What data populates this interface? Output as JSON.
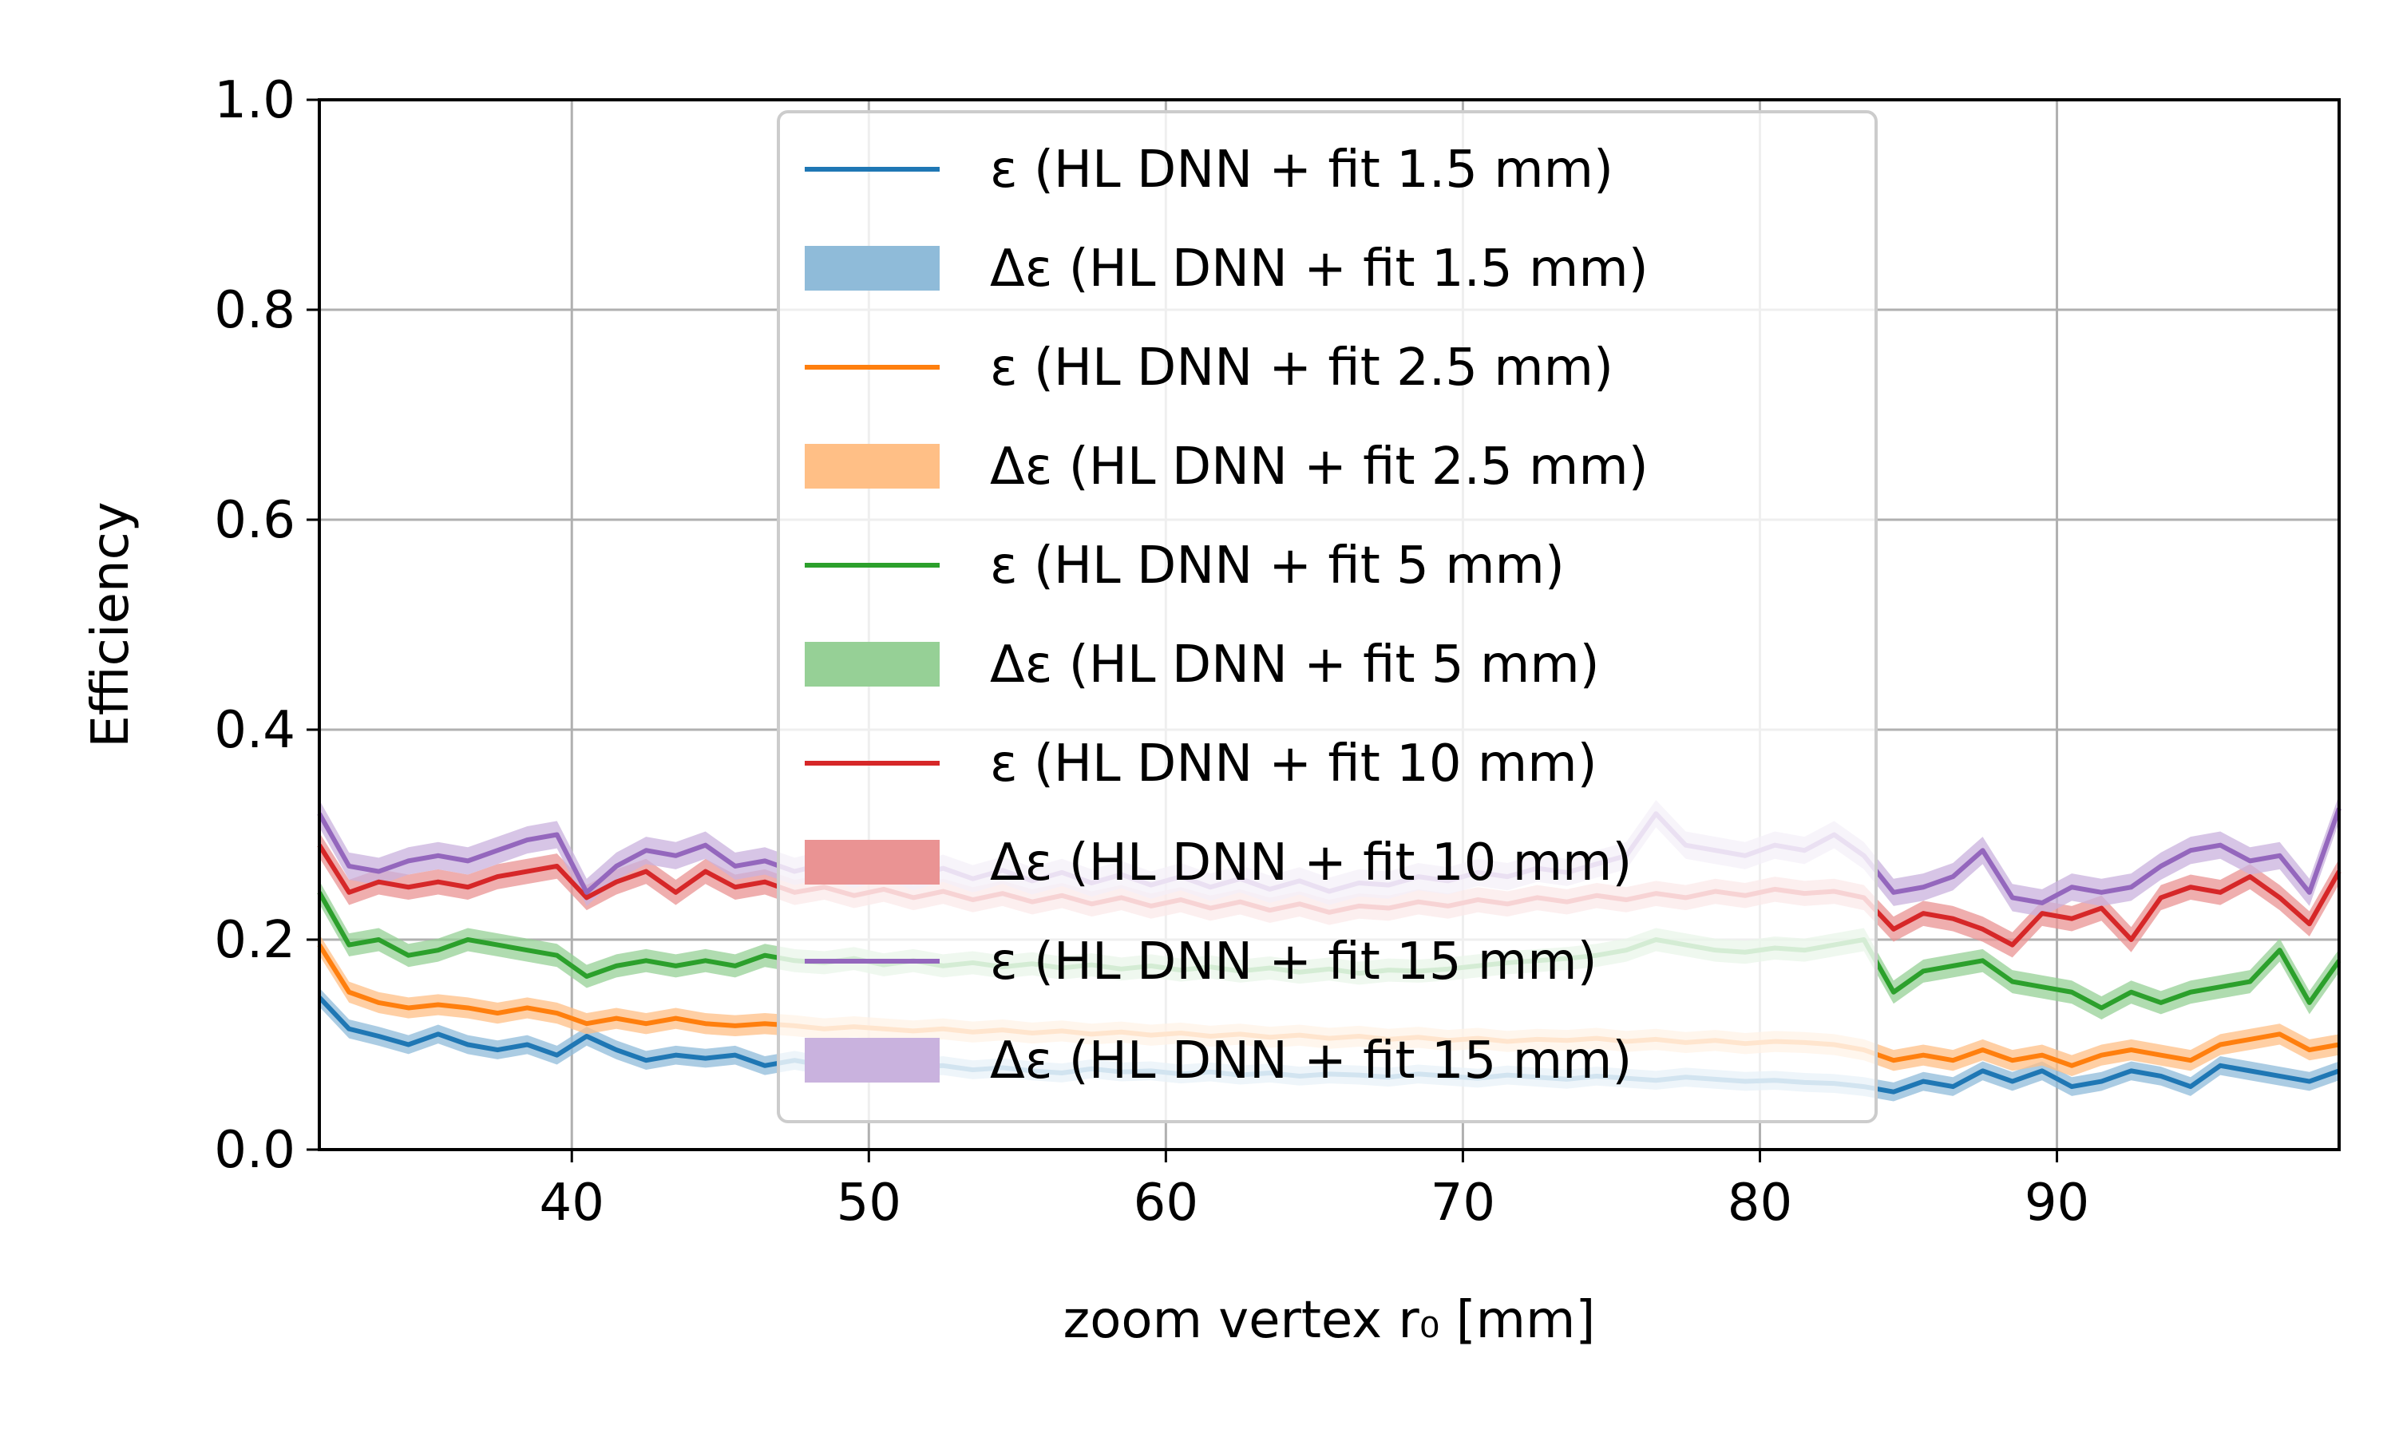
{
  "chart_data": {
    "type": "line",
    "title": "",
    "xlabel": "zoom vertex r₀ [mm]",
    "ylabel": "Efficiency",
    "xlim": [
      31.5,
      99.5
    ],
    "ylim": [
      0.0,
      1.0
    ],
    "x_ticks": [
      40,
      50,
      60,
      70,
      80,
      90
    ],
    "x_tick_labels": [
      "40",
      "50",
      "60",
      "70",
      "80",
      "90"
    ],
    "y_ticks": [
      0.0,
      0.2,
      0.4,
      0.6,
      0.8,
      1.0
    ],
    "y_tick_labels": [
      "0.0",
      "0.2",
      "0.4",
      "0.6",
      "0.8",
      "1.0"
    ],
    "grid": true,
    "legend": "top-center",
    "x": [
      31.5,
      32.5,
      33.5,
      34.5,
      35.5,
      36.5,
      37.5,
      38.5,
      39.5,
      40.5,
      41.5,
      42.5,
      43.5,
      44.5,
      45.5,
      46.5,
      47.5,
      48.5,
      49.5,
      50.5,
      51.5,
      52.5,
      53.5,
      54.5,
      55.5,
      56.5,
      57.5,
      58.5,
      59.5,
      60.5,
      61.5,
      62.5,
      63.5,
      64.5,
      65.5,
      66.5,
      67.5,
      68.5,
      69.5,
      70.5,
      71.5,
      72.5,
      73.5,
      74.5,
      75.5,
      76.5,
      77.5,
      78.5,
      79.5,
      80.5,
      81.5,
      82.5,
      83.5,
      84.5,
      85.5,
      86.5,
      87.5,
      88.5,
      89.5,
      90.5,
      91.5,
      92.5,
      93.5,
      94.5,
      95.5,
      96.5,
      97.5,
      98.5,
      99.5
    ],
    "series": [
      {
        "legend_label": "ε (HL DNN + fit 1.5 mm)",
        "band_label": "Δε (HL DNN + fit 1.5 mm)",
        "color": "#1f77b4",
        "band_color": "#8fbbd9",
        "band_halfwidth": 0.009,
        "values": [
          0.145,
          0.115,
          0.108,
          0.1,
          0.11,
          0.1,
          0.095,
          0.1,
          0.09,
          0.108,
          0.095,
          0.085,
          0.09,
          0.087,
          0.09,
          0.08,
          0.085,
          0.08,
          0.083,
          0.082,
          0.078,
          0.08,
          0.076,
          0.078,
          0.075,
          0.073,
          0.077,
          0.074,
          0.075,
          0.072,
          0.074,
          0.071,
          0.073,
          0.07,
          0.072,
          0.071,
          0.069,
          0.072,
          0.07,
          0.068,
          0.071,
          0.069,
          0.067,
          0.07,
          0.068,
          0.066,
          0.069,
          0.067,
          0.065,
          0.066,
          0.064,
          0.063,
          0.06,
          0.055,
          0.065,
          0.06,
          0.075,
          0.065,
          0.075,
          0.06,
          0.065,
          0.075,
          0.07,
          0.06,
          0.08,
          0.075,
          0.07,
          0.065,
          0.075
        ]
      },
      {
        "legend_label": "ε (HL DNN + fit 2.5 mm)",
        "band_label": "Δε (HL DNN + fit 2.5 mm)",
        "color": "#ff7f0e",
        "band_color": "#ffbf86",
        "band_halfwidth": 0.01,
        "values": [
          0.195,
          0.15,
          0.14,
          0.135,
          0.138,
          0.135,
          0.13,
          0.135,
          0.13,
          0.12,
          0.125,
          0.12,
          0.125,
          0.12,
          0.118,
          0.12,
          0.118,
          0.115,
          0.117,
          0.115,
          0.113,
          0.115,
          0.112,
          0.114,
          0.111,
          0.113,
          0.11,
          0.112,
          0.109,
          0.111,
          0.108,
          0.11,
          0.107,
          0.109,
          0.106,
          0.108,
          0.105,
          0.107,
          0.104,
          0.106,
          0.103,
          0.105,
          0.104,
          0.106,
          0.103,
          0.105,
          0.102,
          0.104,
          0.101,
          0.103,
          0.102,
          0.1,
          0.095,
          0.085,
          0.09,
          0.085,
          0.095,
          0.085,
          0.09,
          0.08,
          0.09,
          0.095,
          0.09,
          0.085,
          0.1,
          0.105,
          0.11,
          0.095,
          0.1
        ]
      },
      {
        "legend_label": "ε (HL DNN + fit 5 mm)",
        "band_label": "Δε (HL DNN + fit 5 mm)",
        "color": "#2ca02c",
        "band_color": "#96d096",
        "band_halfwidth": 0.011,
        "values": [
          0.245,
          0.195,
          0.2,
          0.185,
          0.19,
          0.2,
          0.195,
          0.19,
          0.185,
          0.165,
          0.175,
          0.18,
          0.175,
          0.18,
          0.175,
          0.185,
          0.18,
          0.178,
          0.182,
          0.176,
          0.18,
          0.175,
          0.178,
          0.174,
          0.177,
          0.173,
          0.176,
          0.172,
          0.175,
          0.171,
          0.174,
          0.17,
          0.173,
          0.169,
          0.172,
          0.168,
          0.171,
          0.17,
          0.172,
          0.175,
          0.178,
          0.18,
          0.182,
          0.185,
          0.19,
          0.2,
          0.195,
          0.19,
          0.188,
          0.192,
          0.19,
          0.195,
          0.2,
          0.15,
          0.17,
          0.175,
          0.18,
          0.16,
          0.155,
          0.15,
          0.135,
          0.15,
          0.14,
          0.15,
          0.155,
          0.16,
          0.19,
          0.14,
          0.18
        ]
      },
      {
        "legend_label": "ε (HL DNN + fit 10 mm)",
        "band_label": "Δε (HL DNN + fit 10 mm)",
        "color": "#d62728",
        "band_color": "#ea9393",
        "band_halfwidth": 0.012,
        "values": [
          0.29,
          0.245,
          0.255,
          0.25,
          0.255,
          0.25,
          0.26,
          0.265,
          0.27,
          0.24,
          0.255,
          0.265,
          0.245,
          0.265,
          0.25,
          0.255,
          0.245,
          0.25,
          0.242,
          0.248,
          0.24,
          0.246,
          0.238,
          0.244,
          0.236,
          0.242,
          0.234,
          0.24,
          0.232,
          0.238,
          0.23,
          0.236,
          0.228,
          0.234,
          0.226,
          0.232,
          0.23,
          0.236,
          0.232,
          0.238,
          0.234,
          0.24,
          0.236,
          0.242,
          0.238,
          0.244,
          0.24,
          0.246,
          0.242,
          0.248,
          0.244,
          0.246,
          0.24,
          0.21,
          0.225,
          0.22,
          0.21,
          0.195,
          0.225,
          0.22,
          0.23,
          0.2,
          0.24,
          0.25,
          0.245,
          0.26,
          0.24,
          0.215,
          0.265
        ]
      },
      {
        "legend_label": "ε (HL DNN + fit 15 mm)",
        "band_label": "Δε (HL DNN + fit 15 mm)",
        "color": "#9467bd",
        "band_color": "#c9b2de",
        "band_halfwidth": 0.013,
        "values": [
          0.32,
          0.27,
          0.265,
          0.275,
          0.28,
          0.275,
          0.285,
          0.295,
          0.3,
          0.245,
          0.27,
          0.285,
          0.28,
          0.29,
          0.27,
          0.275,
          0.265,
          0.272,
          0.262,
          0.27,
          0.26,
          0.268,
          0.258,
          0.266,
          0.256,
          0.264,
          0.254,
          0.262,
          0.252,
          0.26,
          0.25,
          0.258,
          0.248,
          0.256,
          0.246,
          0.254,
          0.252,
          0.26,
          0.256,
          0.264,
          0.26,
          0.268,
          0.264,
          0.272,
          0.28,
          0.32,
          0.29,
          0.285,
          0.28,
          0.29,
          0.285,
          0.3,
          0.28,
          0.245,
          0.25,
          0.26,
          0.285,
          0.24,
          0.235,
          0.25,
          0.245,
          0.25,
          0.27,
          0.285,
          0.29,
          0.275,
          0.28,
          0.245,
          0.325
        ]
      }
    ]
  }
}
